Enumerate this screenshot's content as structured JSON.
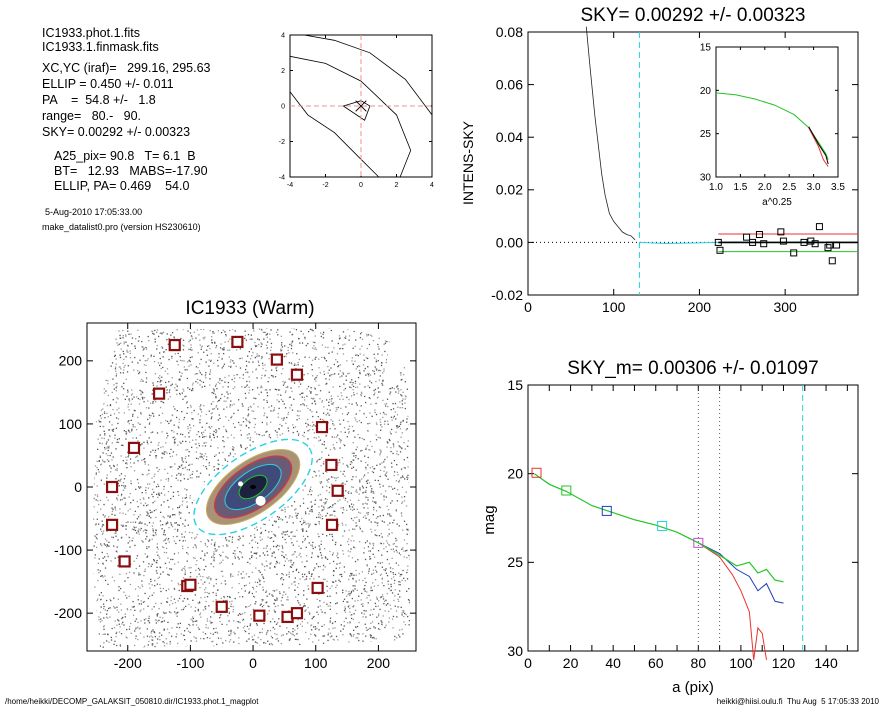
{
  "header": {
    "file1": "IC1933.phot.1.fits",
    "file2": "IC1933.1.finmask.fits",
    "lines": [
      "XC,YC (iraf)=   299.16, 295.63",
      "ELLIP = 0.450 +/- 0.011",
      "PA    =  54.8 +/-   1.8",
      "range=   80.-   90.",
      "SKY= 0.00292 +/- 0.00323"
    ],
    "params": [
      "A25_pix= 90.8   T= 6.1  B",
      "BT=   12.93   MABS=-17.90",
      "ELLIP, PA= 0.469    54.0"
    ],
    "date": "5-Aug-2010 17:05:33.00",
    "program": "make_datalist0.pro (version HS230610)"
  },
  "footer": {
    "left": "/home/heikki/DECOMP_GALAKSIT_050810.dir/IC1933.phot.1_magplot",
    "right": "heikki@hiisi.oulu.fi  Thu Aug  5 17:05:33 2010"
  },
  "colors": {
    "red": "#e8332f",
    "green": "#25c425",
    "cyan": "#27d3e0",
    "blue": "#1b3fbd",
    "magenta": "#c24bd0",
    "pink": "#f28f8f",
    "marker": "#8b0d0d"
  },
  "chart_data": [
    {
      "type": "line",
      "id": "center-contour",
      "xlim": [
        -4,
        4
      ],
      "ylim": [
        -4,
        4
      ],
      "xticks": [
        -4,
        -2,
        0,
        2,
        4
      ],
      "yticks": [
        -4,
        -2,
        0,
        2,
        4
      ],
      "contours": [
        [
          [
            -3.2,
            4
          ],
          [
            -1.5,
            3.7
          ],
          [
            0.5,
            3.0
          ],
          [
            2.5,
            1.5
          ],
          [
            4,
            -0.5
          ]
        ],
        [
          [
            -4,
            2.8
          ],
          [
            -2,
            2.4
          ],
          [
            0,
            1.4
          ],
          [
            2,
            -0.5
          ],
          [
            2.8,
            -2.5
          ],
          [
            2.2,
            -4
          ]
        ],
        [
          [
            -4,
            0.8
          ],
          [
            -3,
            -0.5
          ],
          [
            -1.5,
            -1.5
          ],
          [
            0,
            -3
          ],
          [
            1,
            -4
          ]
        ],
        [
          [
            -1,
            0
          ],
          [
            0,
            0.3
          ],
          [
            0.5,
            0
          ],
          [
            0.2,
            -0.8
          ],
          [
            -1,
            0
          ]
        ]
      ],
      "crosshair": {
        "x": 0,
        "y": 0
      }
    },
    {
      "type": "line",
      "id": "sky-plot",
      "title": "SKY= 0.00292 +/- 0.00323",
      "ylabel": "INTENS-SKY",
      "xlim": [
        0,
        385
      ],
      "ylim": [
        -0.02,
        0.08
      ],
      "xticks": [
        0,
        100,
        200,
        300
      ],
      "yticks": [
        -0.02,
        0.0,
        0.02,
        0.04,
        0.06,
        0.08
      ],
      "ytick_labels": [
        "-0.02",
        "0.00",
        "0.02",
        "0.04",
        "0.06",
        "0.08"
      ],
      "profile": [
        [
          68,
          0.082
        ],
        [
          70,
          0.075
        ],
        [
          72,
          0.068
        ],
        [
          75,
          0.058
        ],
        [
          78,
          0.048
        ],
        [
          82,
          0.037
        ],
        [
          86,
          0.026
        ],
        [
          90,
          0.018
        ],
        [
          95,
          0.011
        ],
        [
          100,
          0.008
        ],
        [
          105,
          0.006
        ],
        [
          110,
          0.004
        ],
        [
          115,
          0.003
        ],
        [
          120,
          0.0025
        ],
        [
          125,
          0.001
        ]
      ],
      "cyan_profile": [
        [
          130,
          0.0
        ],
        [
          160,
          -0.0004
        ],
        [
          200,
          -0.0002
        ],
        [
          240,
          0.0002
        ],
        [
          280,
          0.0
        ],
        [
          320,
          0.0002
        ],
        [
          385,
          0.0
        ]
      ],
      "squares": [
        [
          222,
          0.0
        ],
        [
          224,
          -0.003
        ],
        [
          255,
          0.002
        ],
        [
          262,
          0.0
        ],
        [
          270,
          0.003
        ],
        [
          275,
          -0.0005
        ],
        [
          295,
          0.004
        ],
        [
          298,
          0.0005
        ],
        [
          310,
          -0.004
        ],
        [
          322,
          0.0
        ],
        [
          330,
          0.0005
        ],
        [
          335,
          -0.0005
        ],
        [
          340,
          0.006
        ],
        [
          350,
          -0.002
        ],
        [
          352,
          -0.001
        ],
        [
          355,
          -0.007
        ],
        [
          360,
          -0.001
        ]
      ],
      "hlines": {
        "zero": 0.0,
        "red": 0.0032,
        "green": -0.0035,
        "black": 0.0
      },
      "cyan_vline": 130,
      "inset": {
        "xlabel": "a^0.25",
        "xlim": [
          1.0,
          3.5
        ],
        "ylim": [
          30,
          15
        ],
        "xticks": [
          1.0,
          1.5,
          2.0,
          2.5,
          3.0,
          3.5
        ],
        "xtick_labels": [
          "1.0",
          "1.5",
          "2.0",
          "2.5",
          "3.0",
          "3.5"
        ],
        "yticks": [
          15,
          20,
          25,
          30
        ],
        "green": [
          [
            1.0,
            20.3
          ],
          [
            1.4,
            20.5
          ],
          [
            1.8,
            21.0
          ],
          [
            2.2,
            21.7
          ],
          [
            2.6,
            22.8
          ],
          [
            2.9,
            24.3
          ],
          [
            3.1,
            26.0
          ],
          [
            3.25,
            27.3
          ],
          [
            3.3,
            28.0
          ]
        ],
        "red": [
          [
            2.9,
            24.3
          ],
          [
            3.1,
            26.5
          ],
          [
            3.2,
            28.0
          ],
          [
            3.3,
            28.8
          ]
        ],
        "blue": [
          [
            2.9,
            24.2
          ],
          [
            3.1,
            26.2
          ],
          [
            3.25,
            27.5
          ],
          [
            3.3,
            28.5
          ]
        ]
      }
    },
    {
      "type": "scatter",
      "id": "galaxy-image",
      "title": "IC1933 (Warm)",
      "xlim": [
        -265,
        260
      ],
      "ylim": [
        -260,
        260
      ],
      "xticks": [
        -200,
        -100,
        0,
        100,
        200
      ],
      "yticks": [
        -200,
        -100,
        0,
        100,
        200
      ],
      "ellipse": {
        "cx": 0,
        "cy": 0,
        "a": 115,
        "b": 55,
        "pa_deg": -35
      },
      "markers": [
        [
          -125,
          225
        ],
        [
          -25,
          230
        ],
        [
          38,
          202
        ],
        [
          70,
          178
        ],
        [
          -150,
          148
        ],
        [
          110,
          95
        ],
        [
          -190,
          62
        ],
        [
          125,
          35
        ],
        [
          -225,
          0
        ],
        [
          135,
          -6
        ],
        [
          -225,
          -60
        ],
        [
          126,
          -60
        ],
        [
          -205,
          -118
        ],
        [
          -105,
          -157
        ],
        [
          -50,
          -190
        ],
        [
          55,
          -206
        ],
        [
          10,
          -204
        ],
        [
          70,
          -200
        ],
        [
          -100,
          -155
        ],
        [
          103,
          -160
        ]
      ]
    },
    {
      "type": "line",
      "id": "mag-plot",
      "title": "SKY_m=  0.00306 +/- 0.01097",
      "xlabel": "a (pix)",
      "ylabel": "mag",
      "xlim": [
        0,
        155
      ],
      "ylim": [
        30,
        15
      ],
      "xticks": [
        0,
        10,
        20,
        30,
        40,
        50,
        60,
        70,
        80,
        90,
        100,
        110,
        120,
        130,
        140,
        150
      ],
      "xtick_labels": [
        "0",
        "",
        "20",
        "",
        "40",
        "",
        "60",
        "",
        "80",
        "",
        "100",
        "",
        "120",
        "",
        "140",
        ""
      ],
      "yticks": [
        15,
        20,
        25,
        30
      ],
      "green": [
        [
          3,
          20.0
        ],
        [
          10,
          20.6
        ],
        [
          18,
          21.0
        ],
        [
          30,
          21.8
        ],
        [
          40,
          22.2
        ],
        [
          50,
          22.6
        ],
        [
          60,
          22.9
        ],
        [
          70,
          23.3
        ],
        [
          80,
          23.9
        ],
        [
          90,
          24.6
        ],
        [
          98,
          25.2
        ],
        [
          104,
          25.0
        ],
        [
          108,
          25.6
        ],
        [
          112,
          25.4
        ],
        [
          116,
          26.0
        ],
        [
          120,
          26.1
        ]
      ],
      "blue": [
        [
          80,
          23.9
        ],
        [
          90,
          24.5
        ],
        [
          98,
          25.4
        ],
        [
          104,
          25.8
        ],
        [
          108,
          26.6
        ],
        [
          112,
          26.2
        ],
        [
          116,
          27.2
        ],
        [
          120,
          27.3
        ]
      ],
      "red": [
        [
          80,
          23.9
        ],
        [
          90,
          24.7
        ],
        [
          96,
          25.7
        ],
        [
          100,
          26.6
        ],
        [
          104,
          27.8
        ],
        [
          106,
          30.5
        ],
        [
          108,
          28.7
        ],
        [
          110,
          29.0
        ],
        [
          112,
          30.5
        ]
      ],
      "squares": [
        {
          "x": 4,
          "y": 19.95,
          "c": "red"
        },
        {
          "x": 18,
          "y": 20.95,
          "c": "green"
        },
        {
          "x": 37,
          "y": 22.1,
          "c": "blue"
        },
        {
          "x": 63,
          "y": 22.95,
          "c": "cyan"
        },
        {
          "x": 80,
          "y": 23.9,
          "c": "magenta"
        }
      ],
      "vlines_dotted": [
        80,
        90
      ],
      "cyan_vline": 129
    }
  ]
}
